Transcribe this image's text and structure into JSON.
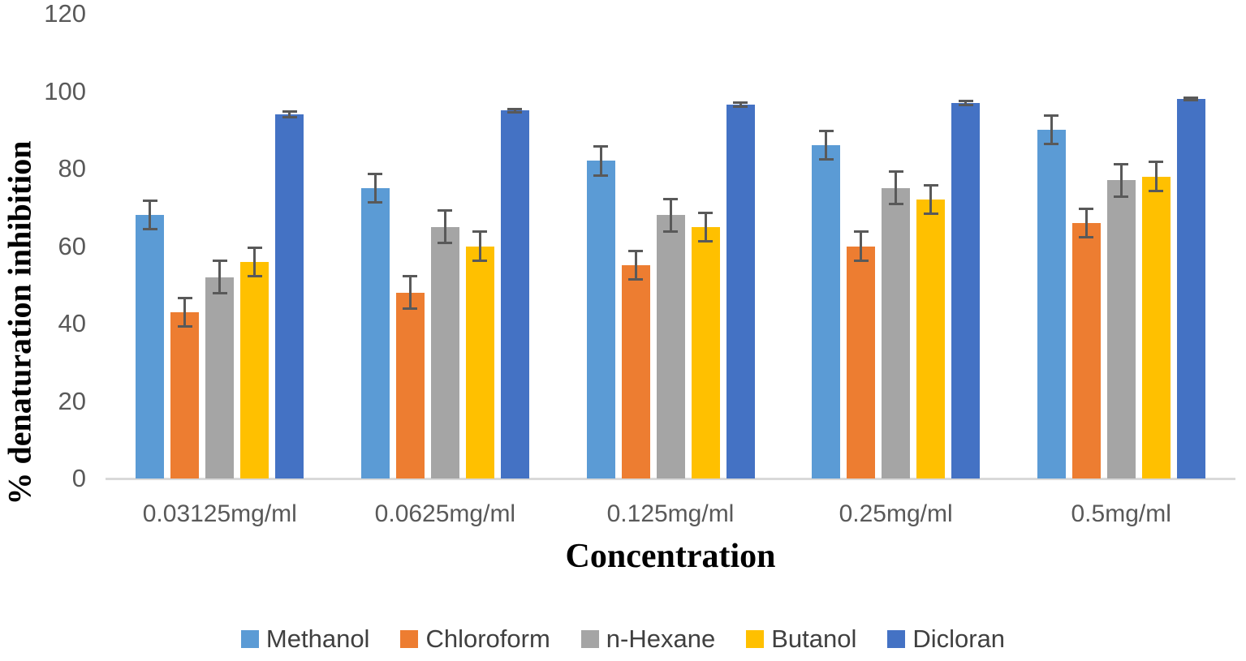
{
  "chart_data": {
    "type": "bar",
    "xlabel": "Concentration",
    "ylabel": "% denaturation inhibition",
    "categories": [
      "0.03125mg/ml",
      "0.0625mg/ml",
      "0.125mg/ml",
      "0.25mg/ml",
      "0.5mg/ml"
    ],
    "y_ticks": [
      0,
      20,
      40,
      60,
      80,
      100,
      120
    ],
    "ylim": [
      0,
      120
    ],
    "grid": false,
    "legend_position": "bottom",
    "error_bars": true,
    "series": [
      {
        "name": "Methanol",
        "color": "#5B9BD5",
        "values": [
          68,
          75,
          82,
          86,
          90
        ],
        "errors": [
          4,
          4,
          4,
          4,
          4
        ]
      },
      {
        "name": "Chloroform",
        "color": "#ED7D31",
        "values": [
          43,
          48,
          55,
          60,
          66
        ],
        "errors": [
          4,
          4.5,
          4,
          4,
          4
        ]
      },
      {
        "name": "n-Hexane",
        "color": "#A5A5A5",
        "values": [
          52,
          65,
          68,
          75,
          77
        ],
        "errors": [
          4.5,
          4.5,
          4.5,
          4.5,
          4.5
        ]
      },
      {
        "name": "Butanol",
        "color": "#FFC000",
        "values": [
          56,
          60,
          65,
          72,
          78
        ],
        "errors": [
          4,
          4,
          4,
          4,
          4
        ]
      },
      {
        "name": "Dicloran",
        "color": "#4472C4",
        "values": [
          94,
          95,
          96.5,
          97,
          98
        ],
        "errors": [
          1,
          0.7,
          0.8,
          0.8,
          0.7
        ]
      }
    ]
  },
  "colors": {
    "axis_line": "#d9d9d9",
    "tick_text": "#595959",
    "category_text": "#595959",
    "legend_text": "#404040",
    "error_bar": "#595959",
    "title_text": "#000000"
  }
}
